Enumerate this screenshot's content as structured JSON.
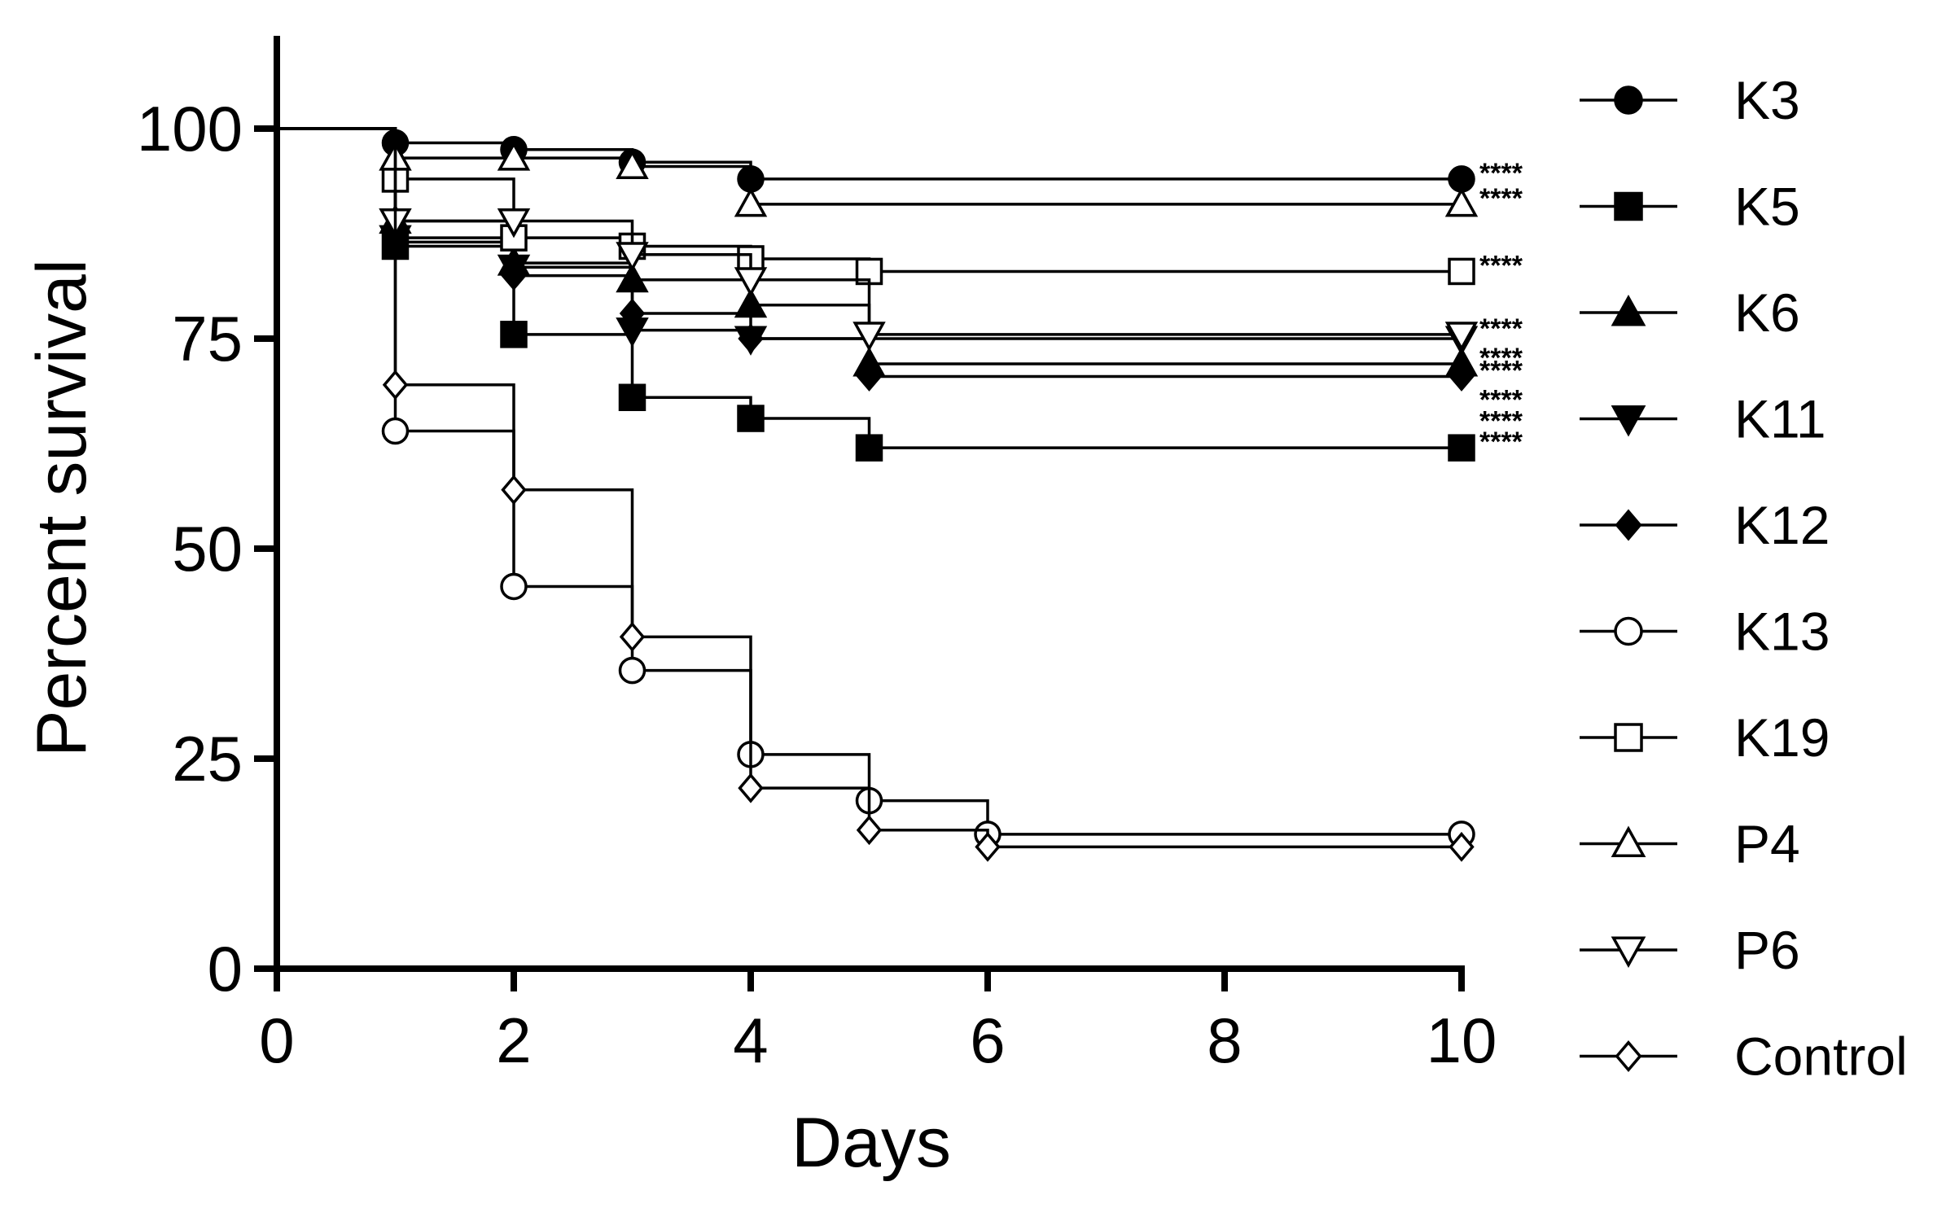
{
  "chart_data": {
    "type": "line",
    "subtype": "kaplan-meier-survival",
    "xlabel": "Days",
    "ylabel": "Percent survival",
    "xlim": [
      0,
      10
    ],
    "ylim": [
      0,
      110
    ],
    "xticks": [
      "0",
      "2",
      "4",
      "6",
      "8",
      "10"
    ],
    "yticks": [
      "0",
      "25",
      "50",
      "75",
      "100"
    ],
    "legend_position": "right",
    "series": [
      {
        "name": "K3",
        "marker": "circle-filled",
        "x": [
          0,
          1,
          2,
          3,
          4,
          10
        ],
        "y": [
          100,
          98.3,
          97.5,
          96,
          94,
          94
        ],
        "annotation": "****"
      },
      {
        "name": "K5",
        "marker": "square-filled",
        "x": [
          0,
          1,
          2,
          3,
          4,
          5,
          10
        ],
        "y": [
          100,
          86,
          75.5,
          68,
          65.5,
          62,
          62
        ],
        "annotation": "****"
      },
      {
        "name": "K6",
        "marker": "triangle-up-filled",
        "x": [
          0,
          1,
          2,
          3,
          4,
          5,
          10
        ],
        "y": [
          100,
          89,
          84,
          82,
          79,
          72,
          72
        ],
        "annotation": "****"
      },
      {
        "name": "K11",
        "marker": "triangle-down-filled",
        "x": [
          0,
          1,
          2,
          3,
          4,
          10
        ],
        "y": [
          100,
          87,
          83.5,
          76,
          75,
          75
        ],
        "annotation": ""
      },
      {
        "name": "K12",
        "marker": "diamond-filled",
        "x": [
          0,
          1,
          2,
          3,
          4,
          5,
          10
        ],
        "y": [
          100,
          86.5,
          82.5,
          78,
          75,
          70.5,
          70.5
        ],
        "annotation": "****"
      },
      {
        "name": "K13",
        "marker": "circle-open",
        "x": [
          0,
          1,
          2,
          3,
          4,
          5,
          6,
          10
        ],
        "y": [
          100,
          64,
          45.5,
          35.5,
          25.5,
          20,
          16,
          16
        ],
        "annotation": ""
      },
      {
        "name": "K19",
        "marker": "square-open",
        "x": [
          0,
          1,
          2,
          3,
          4,
          5,
          10
        ],
        "y": [
          100,
          94,
          87,
          86,
          84.5,
          83,
          83
        ],
        "annotation": "****"
      },
      {
        "name": "P4",
        "marker": "triangle-up-open",
        "x": [
          0,
          1,
          2,
          3,
          4,
          10
        ],
        "y": [
          100,
          96.5,
          96.5,
          95.5,
          91,
          91
        ],
        "annotation": "****"
      },
      {
        "name": "P6",
        "marker": "triangle-down-open",
        "x": [
          0,
          1,
          2,
          3,
          4,
          5,
          10
        ],
        "y": [
          100,
          89,
          89,
          85,
          82,
          75.5,
          75.5
        ],
        "annotation": "****"
      },
      {
        "name": "Control",
        "marker": "diamond-open",
        "x": [
          0,
          1,
          2,
          3,
          4,
          5,
          6,
          10
        ],
        "y": [
          100,
          69.5,
          57,
          39.5,
          21.5,
          16.5,
          14.5,
          14.5
        ],
        "annotation": ""
      }
    ],
    "extra_annotations": [
      {
        "text": "****",
        "y": 67
      },
      {
        "text": "****",
        "y": 64.5
      }
    ]
  }
}
